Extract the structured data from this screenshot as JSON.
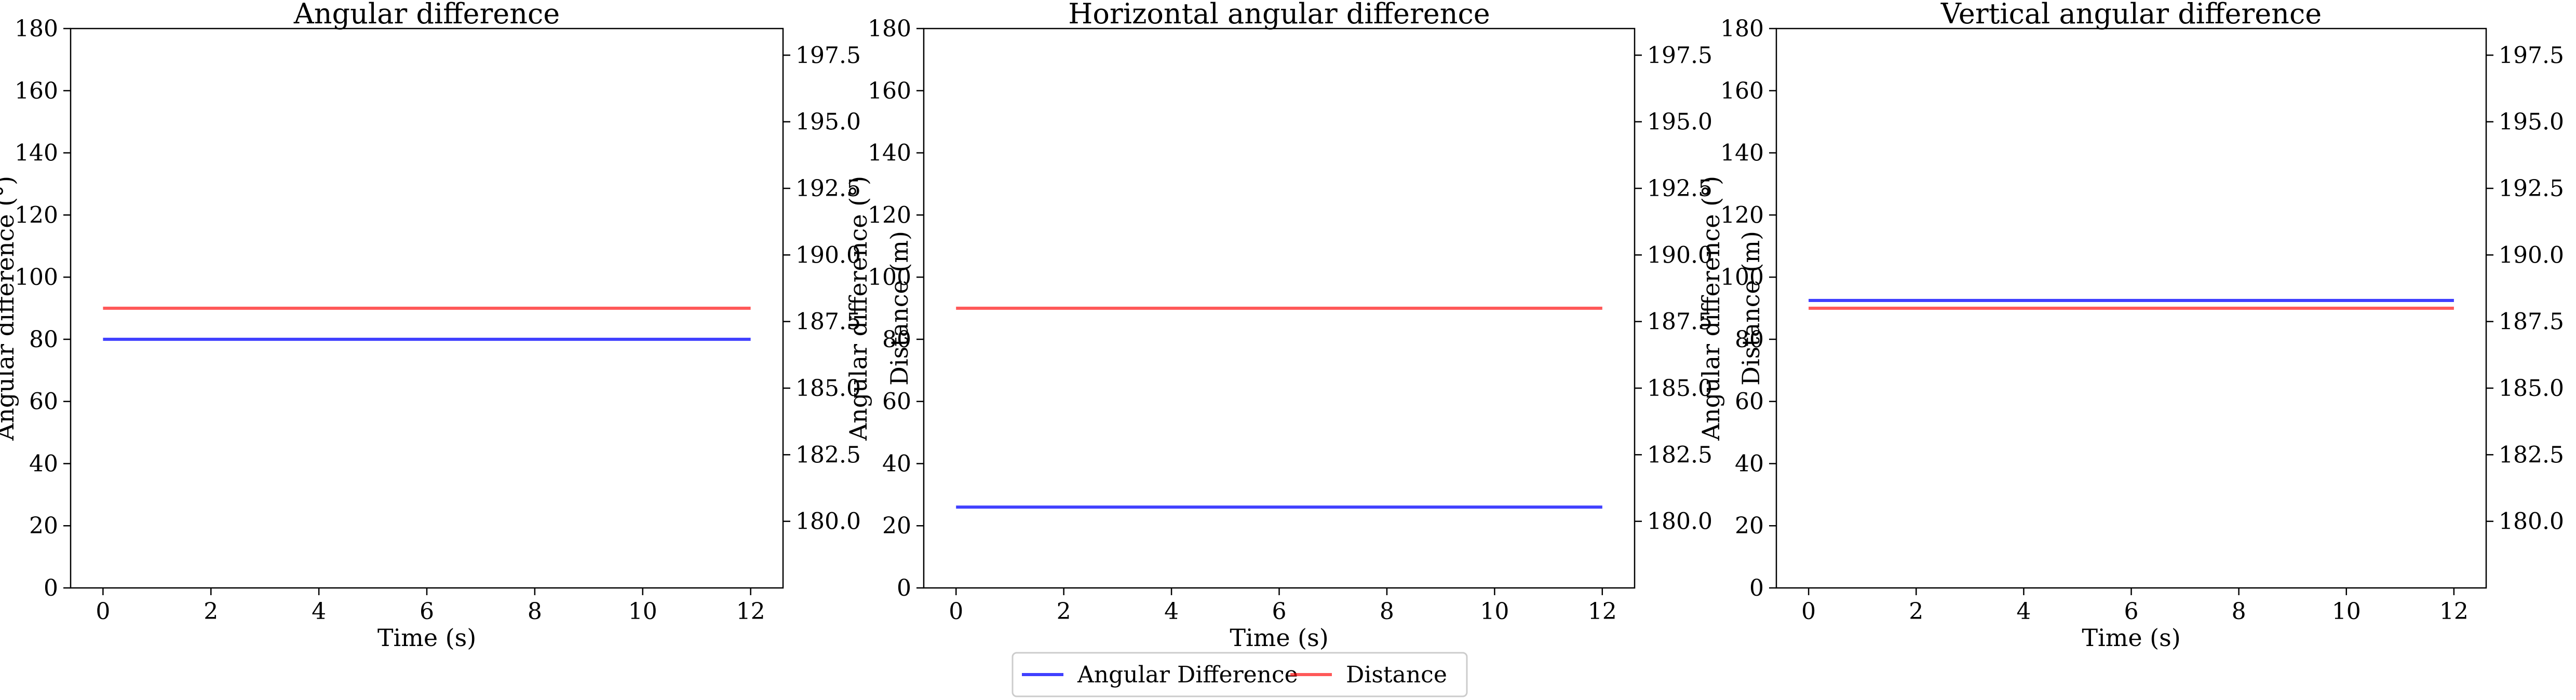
{
  "legend": {
    "items": [
      {
        "label": "Angular Difference",
        "color": "#0000ff"
      },
      {
        "label": "Distance",
        "color": "#ff0000"
      }
    ]
  },
  "chart_data": [
    {
      "type": "line",
      "title": "Angular difference",
      "xlabel": "Time (s)",
      "ylabel": "Angular difference (°)",
      "y2label": "Distance (m)",
      "xlim": [
        -0.6,
        12.6
      ],
      "ylim": [
        0,
        180
      ],
      "y2lim": [
        177.5,
        198.5
      ],
      "xticks": [
        0,
        2,
        4,
        6,
        8,
        10,
        12
      ],
      "yticks": [
        0,
        20,
        40,
        60,
        80,
        100,
        120,
        140,
        160,
        180
      ],
      "y2ticks": [
        "180.0",
        "182.5",
        "185.0",
        "187.5",
        "190.0",
        "192.5",
        "195.0",
        "197.5"
      ],
      "series": [
        {
          "name": "Angular Difference",
          "axis": "left",
          "color": "#0000ff",
          "x": [
            0,
            12
          ],
          "values": [
            80,
            80
          ]
        },
        {
          "name": "Distance",
          "axis": "right",
          "color": "#ff0000",
          "x": [
            0,
            12
          ],
          "values": [
            188.0,
            188.0
          ]
        }
      ]
    },
    {
      "type": "line",
      "title": "Horizontal angular difference",
      "xlabel": "Time (s)",
      "ylabel": "Angular difference (°)",
      "y2label": "Distance (m)",
      "xlim": [
        -0.6,
        12.6
      ],
      "ylim": [
        0,
        180
      ],
      "y2lim": [
        177.5,
        198.5
      ],
      "xticks": [
        0,
        2,
        4,
        6,
        8,
        10,
        12
      ],
      "yticks": [
        0,
        20,
        40,
        60,
        80,
        100,
        120,
        140,
        160,
        180
      ],
      "y2ticks": [
        "180.0",
        "182.5",
        "185.0",
        "187.5",
        "190.0",
        "192.5",
        "195.0",
        "197.5"
      ],
      "series": [
        {
          "name": "Angular Difference",
          "axis": "left",
          "color": "#0000ff",
          "x": [
            0,
            12
          ],
          "values": [
            26,
            26
          ]
        },
        {
          "name": "Distance",
          "axis": "right",
          "color": "#ff0000",
          "x": [
            0,
            12
          ],
          "values": [
            188.0,
            188.0
          ]
        }
      ]
    },
    {
      "type": "line",
      "title": "Vertical angular difference",
      "xlabel": "Time (s)",
      "ylabel": "Angular difference (°)",
      "y2label": "Distance (m)",
      "xlim": [
        -0.6,
        12.6
      ],
      "ylim": [
        0,
        180
      ],
      "y2lim": [
        177.5,
        198.5
      ],
      "xticks": [
        0,
        2,
        4,
        6,
        8,
        10,
        12
      ],
      "yticks": [
        0,
        20,
        40,
        60,
        80,
        100,
        120,
        140,
        160,
        180
      ],
      "y2ticks": [
        "180.0",
        "182.5",
        "185.0",
        "187.5",
        "190.0",
        "192.5",
        "195.0",
        "197.5"
      ],
      "series": [
        {
          "name": "Angular Difference",
          "axis": "left",
          "color": "#0000ff",
          "x": [
            0,
            12
          ],
          "values": [
            92.5,
            92.5
          ]
        },
        {
          "name": "Distance",
          "axis": "right",
          "color": "#ff0000",
          "x": [
            0,
            12
          ],
          "values": [
            188.0,
            188.0
          ]
        }
      ]
    }
  ]
}
